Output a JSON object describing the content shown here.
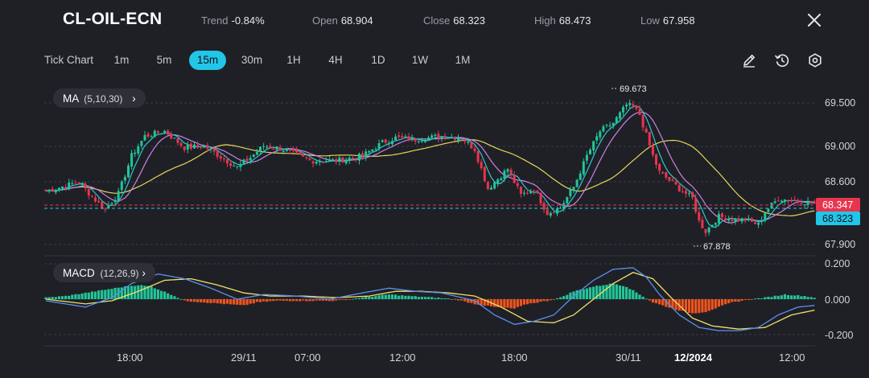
{
  "header": {
    "symbol": "CL-OIL-ECN",
    "trend_label": "Trend",
    "trend_value": "-0.84%",
    "open_label": "Open",
    "open_value": "68.904",
    "close_label": "Close",
    "close_value": "68.323",
    "high_label": "High",
    "high_value": "68.473",
    "low_label": "Low",
    "low_value": "67.958"
  },
  "toolbar": {
    "tick_chart": "Tick Chart",
    "timeframes": [
      "1m",
      "5m",
      "15m",
      "30m",
      "1H",
      "4H",
      "1D",
      "1W",
      "1M"
    ],
    "active_timeframe": "15m"
  },
  "indicators": {
    "ma_label": "MA",
    "ma_params": "(5,10,30)",
    "macd_label": "MACD",
    "macd_params": "(12,26,9)"
  },
  "price_axis": [
    "69.500",
    "69.000",
    "68.600",
    "67.900"
  ],
  "macd_axis": [
    "0.200",
    "0.000",
    "-0.200"
  ],
  "time_axis": [
    "18:00",
    "29/11",
    "07:00",
    "12:00",
    "18:00",
    "30/11",
    "12/2024",
    "12:00"
  ],
  "annotations": {
    "max_label": "69.673",
    "min_label": "67.878"
  },
  "price_tags": {
    "ref": "68.347",
    "last": "68.323"
  },
  "colors": {
    "up": "#22c598",
    "down": "#e8354e",
    "ma5": "#2ec7d6",
    "ma10": "#c884e6",
    "ma30": "#e4d65c",
    "macd_pos": "#22c598",
    "macd_neg": "#f0541e",
    "dif": "#5b8ff0",
    "dea": "#f0e26a",
    "active": "#22c6e8"
  },
  "icons": [
    "pencil-icon",
    "timer-reset-icon",
    "settings-icon",
    "close-icon"
  ],
  "chart_data": {
    "type": "candlestick",
    "price_anchors": [
      [
        0,
        68.47
      ],
      [
        10,
        68.58
      ],
      [
        14,
        68.4
      ],
      [
        18,
        68.25
      ],
      [
        22,
        68.44
      ],
      [
        26,
        68.9
      ],
      [
        30,
        69.14
      ],
      [
        36,
        69.2
      ],
      [
        42,
        69.0
      ],
      [
        48,
        69.02
      ],
      [
        54,
        68.86
      ],
      [
        58,
        68.76
      ],
      [
        62,
        68.88
      ],
      [
        66,
        69.02
      ],
      [
        72,
        68.98
      ],
      [
        80,
        68.84
      ],
      [
        88,
        68.84
      ],
      [
        96,
        68.9
      ],
      [
        102,
        69.06
      ],
      [
        106,
        69.12
      ],
      [
        112,
        69.1
      ],
      [
        120,
        69.14
      ],
      [
        126,
        69.12
      ],
      [
        130,
        68.98
      ],
      [
        134,
        68.5
      ],
      [
        138,
        68.66
      ],
      [
        140,
        68.74
      ],
      [
        144,
        68.42
      ],
      [
        148,
        68.5
      ],
      [
        152,
        68.2
      ],
      [
        156,
        68.27
      ],
      [
        160,
        68.52
      ],
      [
        164,
        68.9
      ],
      [
        168,
        69.2
      ],
      [
        172,
        69.3
      ],
      [
        176,
        69.52
      ],
      [
        178,
        69.5
      ],
      [
        180,
        69.4
      ],
      [
        184,
        68.9
      ],
      [
        186,
        68.7
      ],
      [
        192,
        68.5
      ],
      [
        196,
        68.38
      ],
      [
        198,
        68.1
      ],
      [
        200,
        67.98
      ],
      [
        204,
        68.16
      ],
      [
        208,
        68.13
      ],
      [
        212,
        68.12
      ],
      [
        216,
        68.06
      ],
      [
        218,
        68.22
      ],
      [
        222,
        68.38
      ],
      [
        226,
        68.36
      ],
      [
        230,
        68.34
      ],
      [
        233,
        68.323
      ]
    ],
    "macd_histogram_anchors": [
      [
        0,
        0.01
      ],
      [
        6,
        0.02
      ],
      [
        12,
        0.04
      ],
      [
        18,
        0.06
      ],
      [
        24,
        0.08
      ],
      [
        28,
        0.09
      ],
      [
        32,
        0.08
      ],
      [
        38,
        0.03
      ],
      [
        42,
        -0.01
      ],
      [
        48,
        -0.02
      ],
      [
        54,
        -0.03
      ],
      [
        60,
        -0.04
      ],
      [
        64,
        -0.02
      ],
      [
        70,
        -0.01
      ],
      [
        78,
        -0.01
      ],
      [
        88,
        -0.01
      ],
      [
        96,
        0.01
      ],
      [
        104,
        0.03
      ],
      [
        110,
        0.02
      ],
      [
        118,
        0.01
      ],
      [
        124,
        0.0
      ],
      [
        130,
        -0.03
      ],
      [
        136,
        -0.05
      ],
      [
        142,
        -0.06
      ],
      [
        146,
        -0.03
      ],
      [
        152,
        -0.01
      ],
      [
        156,
        0.01
      ],
      [
        160,
        0.05
      ],
      [
        166,
        0.08
      ],
      [
        172,
        0.1
      ],
      [
        176,
        0.08
      ],
      [
        180,
        0.03
      ],
      [
        184,
        -0.02
      ],
      [
        190,
        -0.06
      ],
      [
        196,
        -0.09
      ],
      [
        200,
        -0.08
      ],
      [
        204,
        -0.05
      ],
      [
        208,
        -0.02
      ],
      [
        214,
        0.0
      ],
      [
        218,
        0.01
      ],
      [
        224,
        0.03
      ],
      [
        230,
        0.02
      ],
      [
        233,
        0.01
      ]
    ],
    "dif_anchors": [
      [
        0,
        -0.01
      ],
      [
        12,
        -0.05
      ],
      [
        20,
        0.01
      ],
      [
        26,
        0.1
      ],
      [
        34,
        0.16
      ],
      [
        42,
        0.13
      ],
      [
        50,
        0.07
      ],
      [
        58,
        0.0
      ],
      [
        66,
        0.03
      ],
      [
        76,
        0.02
      ],
      [
        86,
        0.0
      ],
      [
        96,
        0.04
      ],
      [
        104,
        0.07
      ],
      [
        112,
        0.05
      ],
      [
        120,
        0.04
      ],
      [
        130,
        -0.01
      ],
      [
        136,
        -0.1
      ],
      [
        142,
        -0.16
      ],
      [
        148,
        -0.14
      ],
      [
        154,
        -0.1
      ],
      [
        160,
        0.02
      ],
      [
        166,
        0.12
      ],
      [
        172,
        0.19
      ],
      [
        178,
        0.2
      ],
      [
        182,
        0.14
      ],
      [
        186,
        0.03
      ],
      [
        192,
        -0.1
      ],
      [
        198,
        -0.18
      ],
      [
        204,
        -0.2
      ],
      [
        210,
        -0.2
      ],
      [
        216,
        -0.18
      ],
      [
        222,
        -0.1
      ],
      [
        228,
        -0.05
      ],
      [
        233,
        -0.04
      ]
    ],
    "dea_anchors": [
      [
        0,
        0.0
      ],
      [
        12,
        -0.03
      ],
      [
        20,
        -0.01
      ],
      [
        28,
        0.05
      ],
      [
        36,
        0.12
      ],
      [
        44,
        0.13
      ],
      [
        52,
        0.09
      ],
      [
        60,
        0.04
      ],
      [
        68,
        0.02
      ],
      [
        78,
        0.02
      ],
      [
        88,
        0.01
      ],
      [
        98,
        0.02
      ],
      [
        106,
        0.05
      ],
      [
        114,
        0.05
      ],
      [
        122,
        0.04
      ],
      [
        130,
        0.02
      ],
      [
        138,
        -0.05
      ],
      [
        146,
        -0.14
      ],
      [
        154,
        -0.15
      ],
      [
        160,
        -0.1
      ],
      [
        166,
        0.0
      ],
      [
        172,
        0.1
      ],
      [
        178,
        0.17
      ],
      [
        184,
        0.13
      ],
      [
        190,
        0.0
      ],
      [
        196,
        -0.12
      ],
      [
        202,
        -0.17
      ],
      [
        210,
        -0.19
      ],
      [
        218,
        -0.18
      ],
      [
        226,
        -0.1
      ],
      [
        233,
        -0.07
      ]
    ],
    "price_ylim": [
      67.8,
      69.72
    ],
    "macd_ylim": [
      -0.23,
      0.23
    ]
  }
}
